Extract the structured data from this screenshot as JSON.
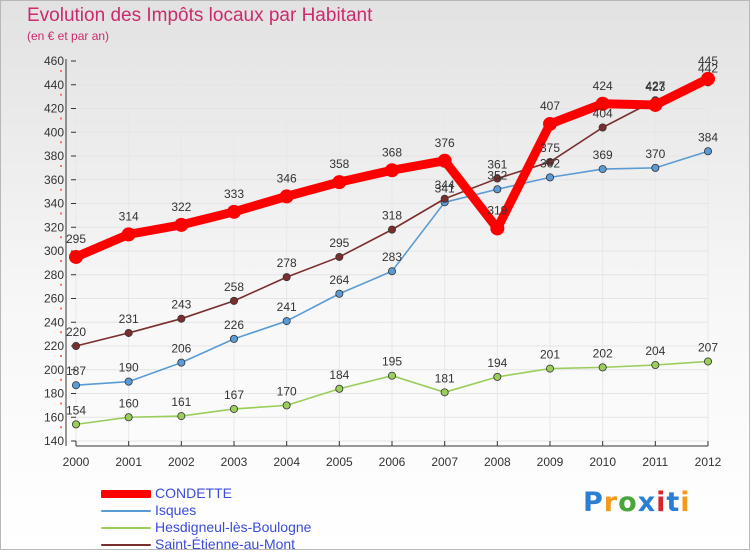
{
  "title": "Evolution des Impôts locaux par Habitant",
  "subtitle": "(en € et par an)",
  "logo": {
    "text": "Proxiti",
    "letters": [
      {
        "ch": "P",
        "color": "#2a7fd4"
      },
      {
        "ch": "r",
        "color": "#f29a1f"
      },
      {
        "ch": "o",
        "color": "#4aa63c"
      },
      {
        "ch": "x",
        "color": "#2a7fd4"
      },
      {
        "ch": "i",
        "color": "#d8262c"
      },
      {
        "ch": "t",
        "color": "#2a7fd4"
      },
      {
        "ch": "i",
        "color": "#f29a1f"
      }
    ]
  },
  "chart_data": {
    "type": "line",
    "title": "Evolution des Impôts locaux par Habitant",
    "subtitle": "(en € et par an)",
    "xlabel": "",
    "ylabel": "",
    "ylim": [
      140,
      460
    ],
    "yticks": [
      140,
      160,
      180,
      200,
      220,
      240,
      260,
      280,
      300,
      320,
      340,
      360,
      380,
      400,
      420,
      440,
      460
    ],
    "grid": true,
    "legend_position": "bottom-left",
    "categories": [
      "2000",
      "2001",
      "2002",
      "2003",
      "2004",
      "2005",
      "2006",
      "2007",
      "2008",
      "2009",
      "2010",
      "2011",
      "2012"
    ],
    "series": [
      {
        "name": "CONDETTE",
        "color": "#ff0000",
        "legend_text_color": "#3a4bd8",
        "emphasis": "thick",
        "values": [
          295,
          314,
          322,
          333,
          346,
          358,
          368,
          376,
          319,
          407,
          424,
          423,
          445
        ]
      },
      {
        "name": "Isques",
        "color": "#5b9bd5",
        "legend_text_color": "#3a4bd8",
        "emphasis": "thin",
        "values": [
          187,
          190,
          206,
          226,
          241,
          264,
          283,
          341,
          352,
          362,
          369,
          370,
          384
        ]
      },
      {
        "name": "Hesdigneul-lès-Boulogne",
        "color": "#9acd5a",
        "legend_text_color": "#3a4bd8",
        "emphasis": "thin",
        "values": [
          154,
          160,
          161,
          167,
          170,
          184,
          195,
          181,
          194,
          201,
          202,
          204,
          207
        ]
      },
      {
        "name": "Saint-Étienne-au-Mont",
        "color": "#7a2e2e",
        "legend_text_color": "#3a4bd8",
        "emphasis": "thin",
        "values": [
          220,
          231,
          243,
          258,
          278,
          295,
          318,
          344,
          361,
          375,
          404,
          427,
          442
        ]
      }
    ]
  }
}
